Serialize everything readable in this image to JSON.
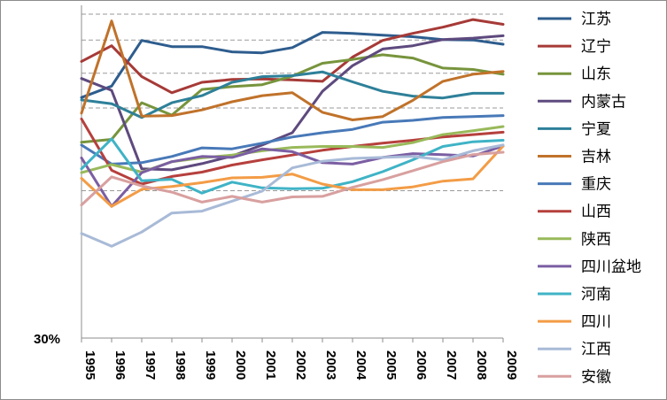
{
  "chart_data": {
    "type": "line",
    "title": "",
    "xlabel": "",
    "ylabel": "",
    "y_tick_labels": [
      "30%"
    ],
    "grid": true,
    "legend_position": "right",
    "ylim": [
      30,
      100
    ],
    "x": [
      "1995",
      "1996",
      "1997",
      "1998",
      "1999",
      "2000",
      "2001",
      "2002",
      "2003",
      "2004",
      "2005",
      "2006",
      "2007",
      "2008",
      "2009"
    ],
    "series": [
      {
        "name": "江苏",
        "color": "#2e5d8e",
        "values": [
          80.6,
          83.0,
          92.6,
          91.3,
          91.3,
          90.2,
          90.0,
          91.1,
          94.3,
          94.1,
          93.7,
          93.4,
          92.8,
          92.7,
          91.8
        ]
      },
      {
        "name": "辽宁",
        "color": "#a63a37",
        "values": [
          88.2,
          91.5,
          85.0,
          81.6,
          83.8,
          84.4,
          84.5,
          84.3,
          84.0,
          89.1,
          92.6,
          94.1,
          95.4,
          97.0,
          96.0
        ]
      },
      {
        "name": "山东",
        "color": "#77943c",
        "values": [
          71.2,
          71.8,
          79.5,
          76.9,
          82.3,
          82.9,
          83.3,
          85.1,
          87.8,
          88.6,
          89.6,
          88.9,
          86.8,
          86.5,
          85.5
        ]
      },
      {
        "name": "内蒙古",
        "color": "#5e4a7e",
        "values": [
          84.6,
          82.1,
          65.6,
          65.4,
          66.7,
          68.3,
          70.6,
          73.2,
          81.9,
          87.3,
          90.8,
          91.5,
          92.8,
          93.1,
          93.6
        ]
      },
      {
        "name": "宁夏",
        "color": "#2e8099",
        "values": [
          80.1,
          79.3,
          76.4,
          79.5,
          81.0,
          83.8,
          85.0,
          85.2,
          86.0,
          83.9,
          81.9,
          80.9,
          80.5,
          81.5,
          81.5
        ]
      },
      {
        "name": "吉林",
        "color": "#c0722a",
        "values": [
          77.3,
          96.7,
          76.7,
          76.8,
          78.0,
          79.7,
          81.0,
          81.6,
          77.5,
          75.9,
          76.6,
          80.0,
          84.0,
          85.5,
          86.1
        ]
      },
      {
        "name": "重庆",
        "color": "#4879b8",
        "values": [
          70.6,
          66.6,
          66.9,
          68.2,
          70.0,
          69.8,
          71.0,
          72.3,
          73.2,
          73.9,
          75.4,
          75.8,
          76.4,
          76.6,
          76.8
        ]
      },
      {
        "name": "山西",
        "color": "#b6403d",
        "values": [
          76.1,
          65.3,
          62.4,
          64.0,
          64.9,
          66.4,
          67.5,
          68.5,
          69.5,
          70.3,
          71.0,
          71.6,
          72.3,
          72.8,
          73.3
        ]
      },
      {
        "name": "陕西",
        "color": "#99b95a",
        "values": [
          64.8,
          66.5,
          64.9,
          67.1,
          67.9,
          68.5,
          69.4,
          70.1,
          70.3,
          70.3,
          70.1,
          71.1,
          72.8,
          73.6,
          74.5
        ]
      },
      {
        "name": "四川盆地",
        "color": "#7b5ea3",
        "values": [
          67.9,
          57.7,
          64.8,
          67.1,
          68.2,
          68.0,
          69.8,
          69.2,
          66.9,
          66.6,
          68.0,
          68.8,
          68.6,
          68.3,
          70.4
        ]
      },
      {
        "name": "河南",
        "color": "#3fb3c6",
        "values": [
          65.6,
          71.9,
          63.1,
          63.4,
          60.5,
          62.8,
          61.6,
          61.4,
          61.5,
          62.9,
          65.0,
          67.5,
          70.3,
          71.3,
          71.6
        ]
      },
      {
        "name": "四川",
        "color": "#f39c46",
        "values": [
          63.6,
          57.7,
          61.3,
          61.9,
          62.7,
          63.7,
          63.8,
          64.5,
          62.4,
          61.2,
          61.2,
          61.8,
          63.0,
          63.5,
          70.4
        ]
      },
      {
        "name": "江西",
        "color": "#a8bad7",
        "values": [
          52.0,
          49.3,
          52.3,
          56.3,
          56.7,
          58.8,
          60.9,
          65.8,
          67.2,
          67.8,
          68.0,
          68.2,
          67.5,
          69.4,
          70.6
        ]
      },
      {
        "name": "安徽",
        "color": "#d8a09f",
        "values": [
          58.0,
          63.9,
          62.0,
          60.7,
          58.6,
          59.8,
          58.6,
          59.7,
          59.8,
          61.7,
          63.3,
          65.2,
          67.1,
          68.6,
          69.1
        ]
      }
    ]
  }
}
